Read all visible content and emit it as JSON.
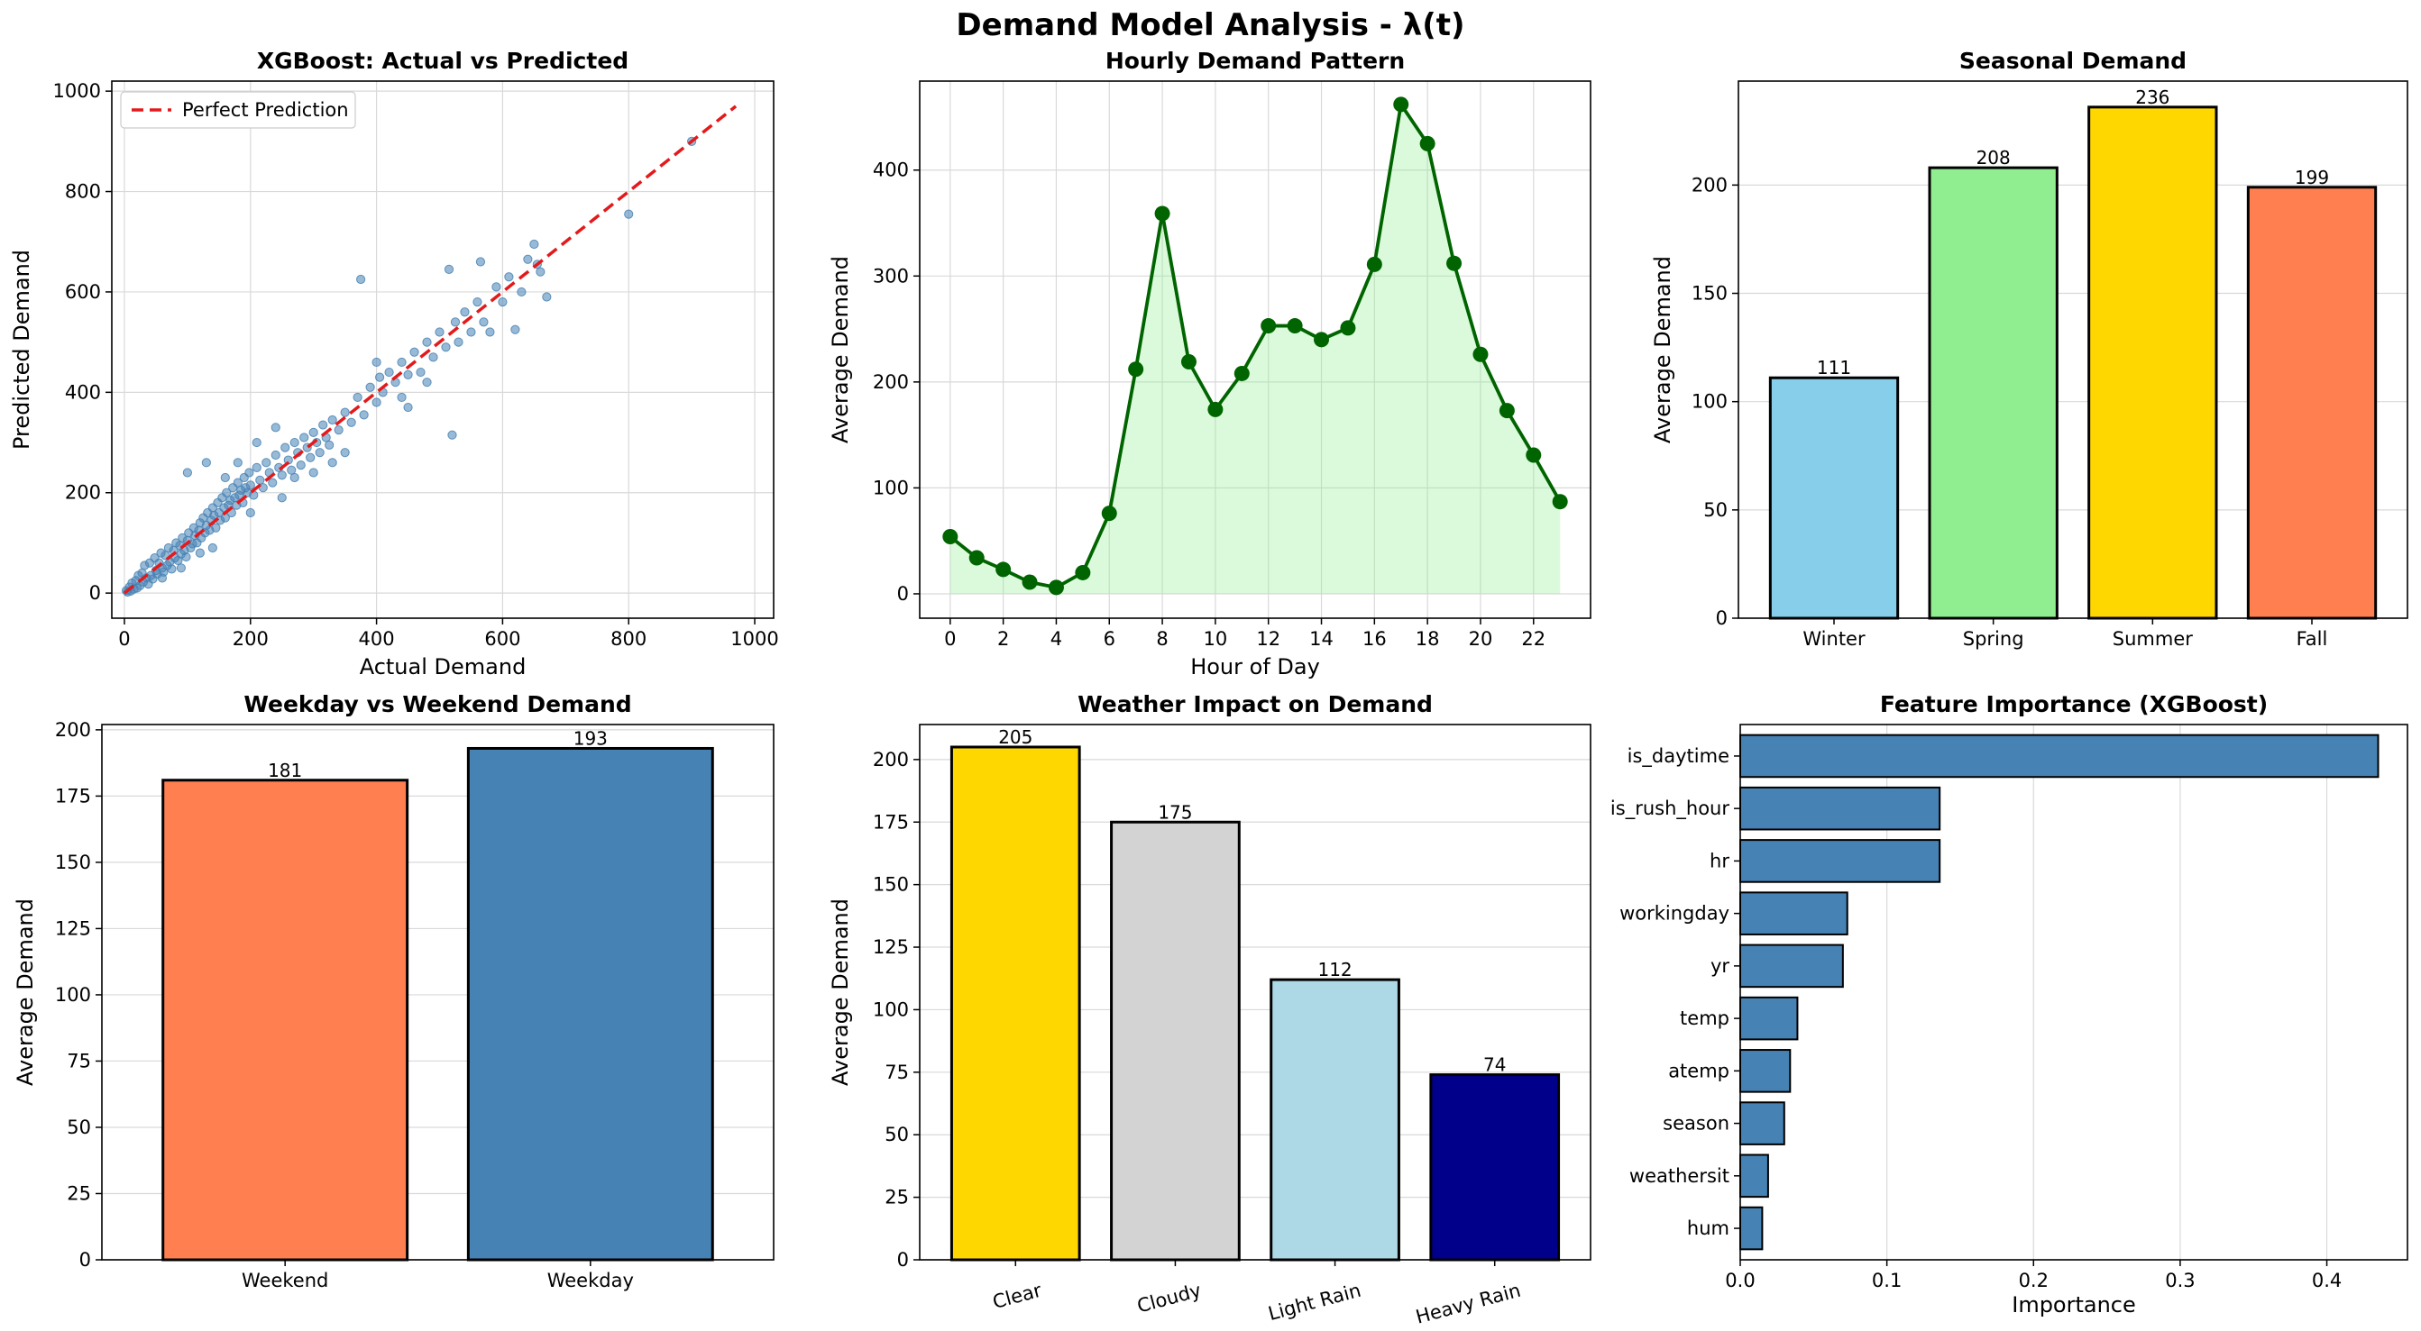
{
  "figure": {
    "title": "Demand Model Analysis - λ(t)"
  },
  "colors": {
    "steelblue": "#4682b4",
    "green": "#006400",
    "lightgreen_fill": "#90ee90",
    "red_dash": "#e31a1c"
  },
  "chart_data": [
    {
      "id": "scatter",
      "type": "scatter",
      "title": "XGBoost: Actual vs Predicted",
      "xlabel": "Actual Demand",
      "ylabel": "Predicted Demand",
      "xlim": [
        -20,
        1030
      ],
      "ylim": [
        -50,
        1020
      ],
      "xticks": [
        0,
        200,
        400,
        600,
        800,
        1000
      ],
      "yticks": [
        0,
        200,
        400,
        600,
        800,
        1000
      ],
      "legend": {
        "label": "Perfect Prediction",
        "placement": "top-left"
      },
      "reference_line": {
        "x": [
          0,
          970
        ],
        "y": [
          0,
          970
        ]
      },
      "points": [
        [
          3,
          5
        ],
        [
          5,
          2
        ],
        [
          8,
          12
        ],
        [
          10,
          4
        ],
        [
          12,
          20
        ],
        [
          15,
          8
        ],
        [
          18,
          25
        ],
        [
          20,
          10
        ],
        [
          22,
          35
        ],
        [
          25,
          15
        ],
        [
          28,
          40
        ],
        [
          30,
          22
        ],
        [
          32,
          55
        ],
        [
          35,
          30
        ],
        [
          38,
          18
        ],
        [
          40,
          60
        ],
        [
          42,
          35
        ],
        [
          45,
          28
        ],
        [
          48,
          70
        ],
        [
          50,
          45
        ],
        [
          52,
          38
        ],
        [
          55,
          60
        ],
        [
          58,
          80
        ],
        [
          60,
          50
        ],
        [
          62,
          42
        ],
        [
          65,
          75
        ],
        [
          68,
          55
        ],
        [
          70,
          90
        ],
        [
          72,
          62
        ],
        [
          75,
          48
        ],
        [
          78,
          85
        ],
        [
          80,
          70
        ],
        [
          82,
          100
        ],
        [
          85,
          65
        ],
        [
          88,
          95
        ],
        [
          90,
          78
        ],
        [
          92,
          110
        ],
        [
          95,
          85
        ],
        [
          98,
          72
        ],
        [
          100,
          105
        ],
        [
          102,
          120
        ],
        [
          105,
          90
        ],
        [
          108,
          98
        ],
        [
          110,
          130
        ],
        [
          112,
          115
        ],
        [
          115,
          100
        ],
        [
          118,
          125
        ],
        [
          120,
          140
        ],
        [
          122,
          110
        ],
        [
          125,
          150
        ],
        [
          128,
          120
        ],
        [
          130,
          135
        ],
        [
          132,
          160
        ],
        [
          135,
          125
        ],
        [
          138,
          145
        ],
        [
          140,
          170
        ],
        [
          142,
          155
        ],
        [
          145,
          130
        ],
        [
          148,
          180
        ],
        [
          150,
          160
        ],
        [
          152,
          145
        ],
        [
          155,
          190
        ],
        [
          158,
          170
        ],
        [
          160,
          150
        ],
        [
          162,
          200
        ],
        [
          165,
          175
        ],
        [
          168,
          185
        ],
        [
          170,
          160
        ],
        [
          172,
          210
        ],
        [
          175,
          190
        ],
        [
          178,
          175
        ],
        [
          180,
          220
        ],
        [
          182,
          195
        ],
        [
          185,
          205
        ],
        [
          188,
          180
        ],
        [
          190,
          230
        ],
        [
          192,
          210
        ],
        [
          195,
          200
        ],
        [
          198,
          240
        ],
        [
          200,
          215
        ],
        [
          205,
          195
        ],
        [
          210,
          250
        ],
        [
          215,
          225
        ],
        [
          220,
          210
        ],
        [
          225,
          260
        ],
        [
          230,
          240
        ],
        [
          235,
          220
        ],
        [
          240,
          275
        ],
        [
          245,
          250
        ],
        [
          250,
          235
        ],
        [
          255,
          290
        ],
        [
          260,
          265
        ],
        [
          265,
          245
        ],
        [
          270,
          300
        ],
        [
          275,
          280
        ],
        [
          280,
          255
        ],
        [
          285,
          310
        ],
        [
          290,
          290
        ],
        [
          295,
          270
        ],
        [
          300,
          320
        ],
        [
          305,
          300
        ],
        [
          310,
          280
        ],
        [
          315,
          335
        ],
        [
          320,
          310
        ],
        [
          325,
          295
        ],
        [
          330,
          345
        ],
        [
          340,
          325
        ],
        [
          350,
          360
        ],
        [
          360,
          340
        ],
        [
          370,
          390
        ],
        [
          375,
          625
        ],
        [
          380,
          355
        ],
        [
          390,
          410
        ],
        [
          400,
          380
        ],
        [
          405,
          430
        ],
        [
          410,
          400
        ],
        [
          420,
          440
        ],
        [
          430,
          420
        ],
        [
          440,
          460
        ],
        [
          450,
          435
        ],
        [
          460,
          480
        ],
        [
          470,
          440
        ],
        [
          480,
          500
        ],
        [
          490,
          470
        ],
        [
          500,
          520
        ],
        [
          510,
          490
        ],
        [
          515,
          645
        ],
        [
          520,
          315
        ],
        [
          525,
          540
        ],
        [
          530,
          500
        ],
        [
          540,
          560
        ],
        [
          550,
          520
        ],
        [
          560,
          580
        ],
        [
          565,
          660
        ],
        [
          570,
          540
        ],
        [
          580,
          520
        ],
        [
          590,
          610
        ],
        [
          600,
          580
        ],
        [
          610,
          630
        ],
        [
          620,
          525
        ],
        [
          630,
          600
        ],
        [
          640,
          665
        ],
        [
          650,
          695
        ],
        [
          655,
          655
        ],
        [
          660,
          640
        ],
        [
          670,
          590
        ],
        [
          800,
          755
        ],
        [
          900,
          900
        ],
        [
          100,
          240
        ],
        [
          130,
          260
        ],
        [
          120,
          80
        ],
        [
          200,
          160
        ],
        [
          250,
          190
        ],
        [
          300,
          240
        ],
        [
          350,
          280
        ],
        [
          450,
          370
        ],
        [
          480,
          420
        ],
        [
          160,
          230
        ],
        [
          180,
          260
        ],
        [
          60,
          30
        ],
        [
          90,
          50
        ],
        [
          140,
          90
        ],
        [
          210,
          300
        ],
        [
          240,
          330
        ],
        [
          270,
          230
        ],
        [
          330,
          260
        ],
        [
          400,
          460
        ],
        [
          440,
          390
        ]
      ]
    },
    {
      "id": "hourly",
      "type": "line",
      "title": "Hourly Demand Pattern",
      "xlabel": "Hour of Day",
      "ylabel": "Average Demand",
      "xlim": [
        -1.15,
        24.15
      ],
      "ylim": [
        -23,
        484
      ],
      "xticks": [
        0,
        2,
        4,
        6,
        8,
        10,
        12,
        14,
        16,
        18,
        20,
        22
      ],
      "yticks": [
        0,
        100,
        200,
        300,
        400
      ],
      "x": [
        0,
        1,
        2,
        3,
        4,
        5,
        6,
        7,
        8,
        9,
        10,
        11,
        12,
        13,
        14,
        15,
        16,
        17,
        18,
        19,
        20,
        21,
        22,
        23
      ],
      "y": [
        54,
        34,
        23,
        11,
        6,
        20,
        76,
        212,
        359,
        219,
        174,
        208,
        253,
        253,
        240,
        251,
        311,
        462,
        425,
        312,
        226,
        173,
        131,
        87
      ]
    },
    {
      "id": "seasonal",
      "type": "bar",
      "title": "Seasonal Demand",
      "xlabel": "",
      "ylabel": "Average Demand",
      "ylim": [
        0,
        248
      ],
      "yticks": [
        0,
        50,
        100,
        150,
        200
      ],
      "categories": [
        "Winter",
        "Spring",
        "Summer",
        "Fall"
      ],
      "values": [
        111,
        208,
        236,
        199
      ],
      "labels": [
        "111",
        "208",
        "236",
        "199"
      ],
      "bar_colors": [
        "#87ceeb",
        "#90ee90",
        "#ffd700",
        "#ff7f50"
      ]
    },
    {
      "id": "weekday",
      "type": "bar",
      "title": "Weekday vs Weekend Demand",
      "xlabel": "",
      "ylabel": "Average Demand",
      "ylim": [
        0,
        202
      ],
      "yticks": [
        0,
        25,
        50,
        75,
        100,
        125,
        150,
        175,
        200
      ],
      "categories": [
        "Weekend",
        "Weekday"
      ],
      "values": [
        181,
        193
      ],
      "labels": [
        "181",
        "193"
      ],
      "bar_colors": [
        "#ff7f50",
        "#4682b4"
      ]
    },
    {
      "id": "weather",
      "type": "bar",
      "title": "Weather Impact on Demand",
      "xlabel": "",
      "ylabel": "Average Demand",
      "ylim": [
        0,
        214
      ],
      "yticks": [
        0,
        25,
        50,
        75,
        100,
        125,
        150,
        175,
        200
      ],
      "categories": [
        "Clear",
        "Cloudy",
        "Light Rain",
        "Heavy Rain"
      ],
      "values": [
        205,
        175,
        112,
        74
      ],
      "labels": [
        "205",
        "175",
        "112",
        "74"
      ],
      "bar_colors": [
        "#ffd700",
        "#d3d3d3",
        "#add8e6",
        "#00008b"
      ]
    },
    {
      "id": "importance",
      "type": "bar",
      "orientation": "horizontal",
      "title": "Feature Importance (XGBoost)",
      "xlabel": "Importance",
      "ylabel": "",
      "xlim": [
        0,
        0.455
      ],
      "xticks": [
        0.0,
        0.1,
        0.2,
        0.3,
        0.4
      ],
      "xtick_labels": [
        "0.0",
        "0.1",
        "0.2",
        "0.3",
        "0.4"
      ],
      "categories": [
        "is_daytime",
        "is_rush_hour",
        "hr",
        "workingday",
        "yr",
        "temp",
        "atemp",
        "season",
        "weathersit",
        "hum"
      ],
      "values": [
        0.435,
        0.136,
        0.136,
        0.073,
        0.07,
        0.039,
        0.034,
        0.03,
        0.019,
        0.015
      ],
      "bar_color": "#4682b4"
    }
  ]
}
